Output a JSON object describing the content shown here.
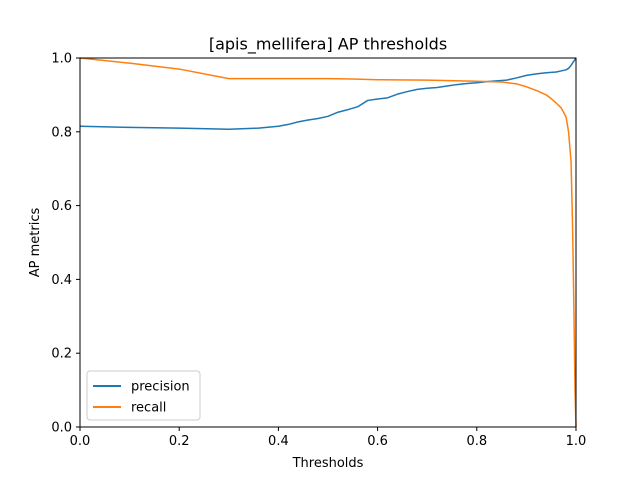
{
  "chart_data": {
    "type": "line",
    "title": "[apis_mellifera] AP thresholds",
    "xlabel": "Thresholds",
    "ylabel": "AP metrics",
    "xlim": [
      0,
      1
    ],
    "ylim": [
      0,
      1
    ],
    "xticks": [
      "0.0",
      "0.2",
      "0.4",
      "0.6",
      "0.8",
      "1.0"
    ],
    "yticks": [
      "0.0",
      "0.2",
      "0.4",
      "0.6",
      "0.8",
      "1.0"
    ],
    "grid": false,
    "legend_position": "lower-left",
    "series": [
      {
        "name": "precision",
        "color": "#1f77b4",
        "x": [
          0.0,
          0.1,
          0.2,
          0.3,
          0.36,
          0.4,
          0.42,
          0.44,
          0.46,
          0.48,
          0.5,
          0.52,
          0.54,
          0.56,
          0.58,
          0.6,
          0.62,
          0.64,
          0.66,
          0.68,
          0.7,
          0.72,
          0.74,
          0.76,
          0.78,
          0.8,
          0.82,
          0.84,
          0.86,
          0.88,
          0.9,
          0.92,
          0.94,
          0.96,
          0.97,
          0.98,
          0.985,
          0.99,
          0.995,
          1.0
        ],
        "y": [
          0.815,
          0.812,
          0.81,
          0.807,
          0.81,
          0.815,
          0.82,
          0.827,
          0.832,
          0.836,
          0.842,
          0.853,
          0.86,
          0.868,
          0.885,
          0.889,
          0.892,
          0.902,
          0.909,
          0.915,
          0.918,
          0.92,
          0.924,
          0.928,
          0.931,
          0.933,
          0.936,
          0.938,
          0.94,
          0.946,
          0.953,
          0.957,
          0.96,
          0.962,
          0.965,
          0.968,
          0.972,
          0.98,
          0.99,
          1.0
        ]
      },
      {
        "name": "recall",
        "color": "#ff7f0e",
        "x": [
          0.0,
          0.1,
          0.2,
          0.3,
          0.4,
          0.5,
          0.55,
          0.6,
          0.7,
          0.8,
          0.85,
          0.88,
          0.9,
          0.92,
          0.94,
          0.95,
          0.96,
          0.97,
          0.98,
          0.985,
          0.99,
          0.993,
          0.996,
          0.998,
          1.0
        ],
        "y": [
          1.0,
          0.986,
          0.97,
          0.944,
          0.944,
          0.944,
          0.943,
          0.941,
          0.94,
          0.937,
          0.935,
          0.93,
          0.922,
          0.912,
          0.9,
          0.89,
          0.878,
          0.865,
          0.84,
          0.8,
          0.72,
          0.55,
          0.3,
          0.1,
          0.0
        ]
      }
    ]
  }
}
